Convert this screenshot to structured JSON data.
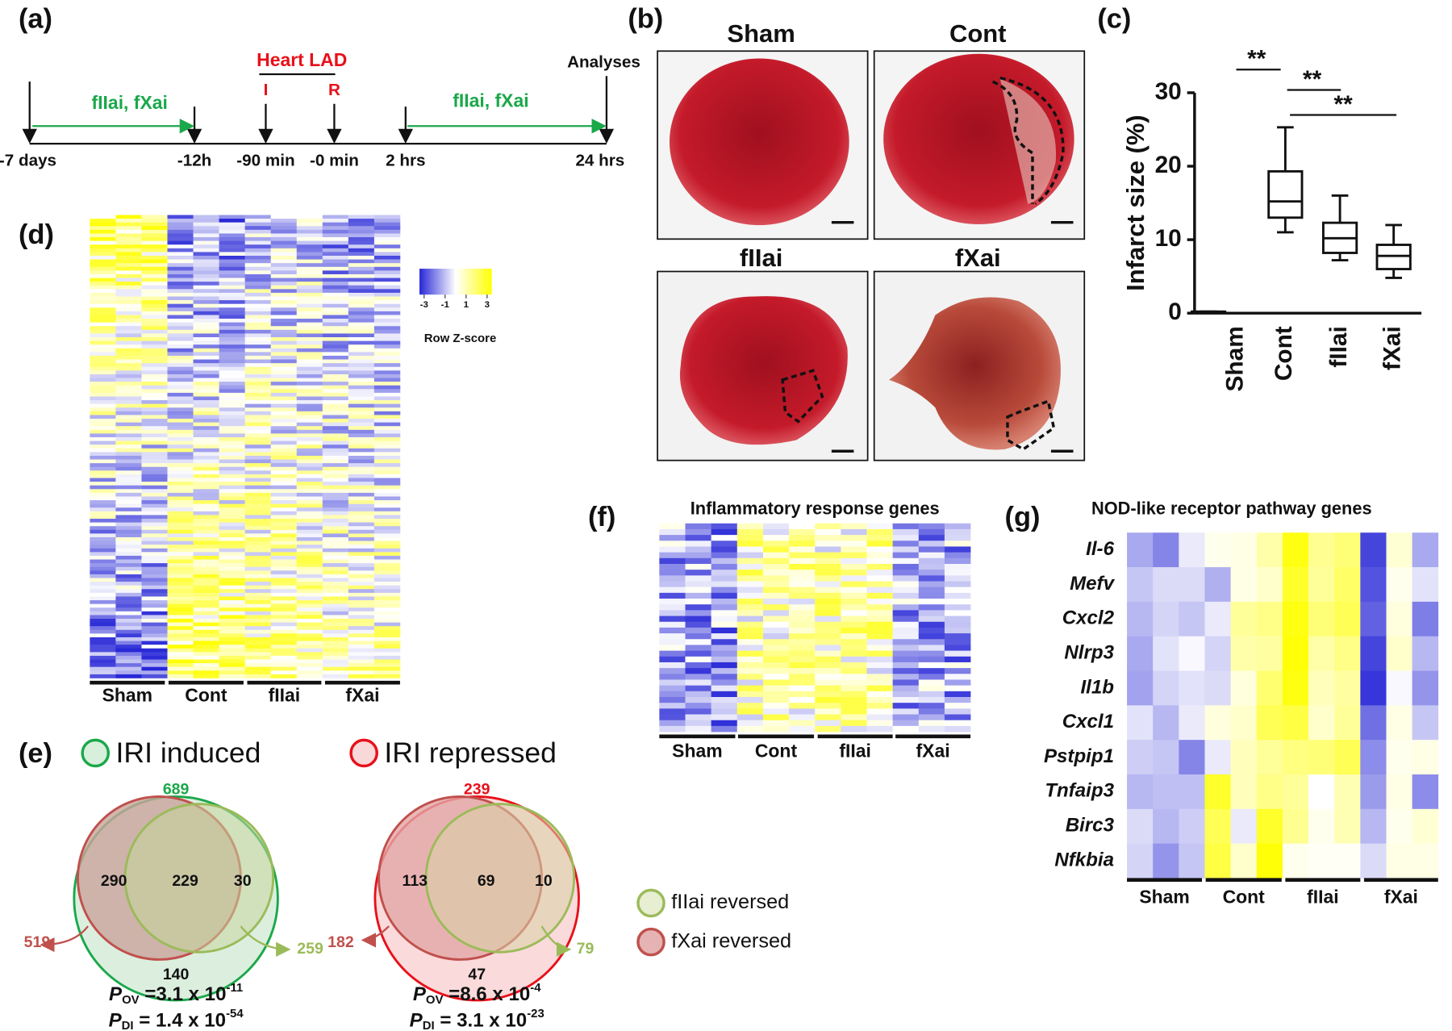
{
  "panels": [
    "(a)",
    "(b)",
    "(c)",
    "(d)",
    "(e)",
    "(f)",
    "(g)"
  ],
  "timeline": {
    "treatment": [
      "fIIai, fXai",
      "fIIai, fXai"
    ],
    "surgery": "Heart LAD",
    "start": "I",
    "end": "R",
    "analyses": "Analyses",
    "times": [
      "-7 days",
      "-12h",
      "-90 min",
      "-0 min",
      "2 hrs",
      "24 hrs"
    ]
  },
  "photos": {
    "titles": [
      "Sham",
      "Cont",
      "fIIai",
      "fXai"
    ]
  },
  "chart_data": {
    "type": "box",
    "ylabel": "Infarct size (%)",
    "categories": [
      "Sham",
      "Cont",
      "fIIai",
      "fXai"
    ],
    "values": [
      {
        "min": 0.2,
        "q1": 0.2,
        "median": 0.2,
        "q3": 0.2,
        "max": 0.2
      },
      {
        "min": 11,
        "q1": 13,
        "median": 15.2,
        "q3": 19.3,
        "max": 25.3
      },
      {
        "min": 7.2,
        "q1": 8.2,
        "median": 10.2,
        "q3": 12.3,
        "max": 16
      },
      {
        "min": 4.8,
        "q1": 6,
        "median": 7.8,
        "q3": 9.3,
        "max": 12
      }
    ],
    "ylim": [
      0,
      30
    ],
    "yticks": [
      0,
      10,
      20,
      30
    ],
    "annotations": [
      "**",
      "**",
      "**"
    ]
  },
  "heatmap_d": {
    "groups": [
      "Sham",
      "Cont",
      "fIIai",
      "fXai"
    ],
    "zlim": [
      -3,
      3
    ],
    "legend_ticks": [
      -3,
      -1,
      1,
      3
    ],
    "legend_label": "Row Z-score"
  },
  "venn": {
    "headers": [
      "IRI induced",
      "IRI repressed"
    ],
    "diagrams": [
      {
        "total": "689",
        "left": "290",
        "both": "229",
        "right": "30",
        "bottom": "140",
        "left_total": "519",
        "right_total": "259",
        "p": [
          {
            "name": "P",
            "sub": "OV",
            "text": " =3.1 x 10",
            "sup": "-11"
          },
          {
            "name": "P",
            "sub": "DI",
            "text": " = 1.4 x 10",
            "sup": "-54"
          }
        ]
      },
      {
        "total": "239",
        "left": "113",
        "both": "69",
        "right": "10",
        "bottom": "47",
        "left_total": "182",
        "right_total": "79",
        "p": [
          {
            "name": "P",
            "sub": "OV",
            "text": " =8.6 x 10",
            "sup": "-4"
          },
          {
            "name": "P",
            "sub": "DI",
            "text": " = 3.1 x 10",
            "sup": "-23"
          }
        ]
      }
    ],
    "legend": [
      "fIIai reversed",
      "fXai reversed"
    ]
  },
  "heatmap_f": {
    "title": "Inflammatory response genes",
    "groups": [
      "Sham",
      "Cont",
      "fIIai",
      "fXai"
    ]
  },
  "heatmap_g": {
    "title": "NOD-like receptor pathway genes",
    "groups": [
      "Sham",
      "Cont",
      "fIIai",
      "fXai"
    ],
    "genes": [
      "Il-6",
      "Mefv",
      "Cxcl2",
      "Nlrp3",
      "Il1b",
      "Cxcl1",
      "Pstpip1",
      "Tnfaip3",
      "Birc3",
      "Nfkbia"
    ],
    "values": [
      [
        -1.2,
        -1.7,
        -0.3,
        0.2,
        0.3,
        1.0,
        2.8,
        1.3,
        1.6,
        -2.6,
        0.5,
        -1.2
      ],
      [
        -0.8,
        -0.5,
        -0.5,
        -1.1,
        0.3,
        0.6,
        2.5,
        1.2,
        1.8,
        -2.4,
        0.2,
        -0.4
      ],
      [
        -1.0,
        -0.6,
        -0.8,
        -0.3,
        1.2,
        1.4,
        2.8,
        1.6,
        2.0,
        -2.2,
        0.4,
        -1.8
      ],
      [
        -1.2,
        -0.4,
        -0.1,
        -0.6,
        1.0,
        1.1,
        2.9,
        1.0,
        1.4,
        -2.6,
        0.6,
        -1.0
      ],
      [
        -1.3,
        -0.6,
        -0.4,
        -0.5,
        0.4,
        1.7,
        2.8,
        0.8,
        1.1,
        -2.8,
        -0.1,
        -1.5
      ],
      [
        -0.4,
        -1.0,
        -0.3,
        0.4,
        0.6,
        2.0,
        2.2,
        0.6,
        1.2,
        -2.0,
        0.3,
        -0.8
      ],
      [
        -0.7,
        -0.8,
        -1.7,
        -0.3,
        0.8,
        1.2,
        1.5,
        1.6,
        2.0,
        -1.6,
        0.2,
        0.3
      ],
      [
        -1.0,
        -0.9,
        -0.9,
        2.5,
        0.8,
        1.4,
        1.2,
        0.0,
        0.9,
        -1.4,
        0.3,
        -1.6
      ],
      [
        -0.5,
        -1.0,
        -0.7,
        2.0,
        -0.3,
        2.5,
        1.3,
        0.2,
        0.9,
        -1.0,
        0.2,
        0.5
      ],
      [
        -0.6,
        -1.5,
        -0.8,
        2.2,
        0.6,
        2.9,
        0.2,
        0.1,
        0.1,
        -0.5,
        0.3,
        0.3
      ]
    ]
  }
}
